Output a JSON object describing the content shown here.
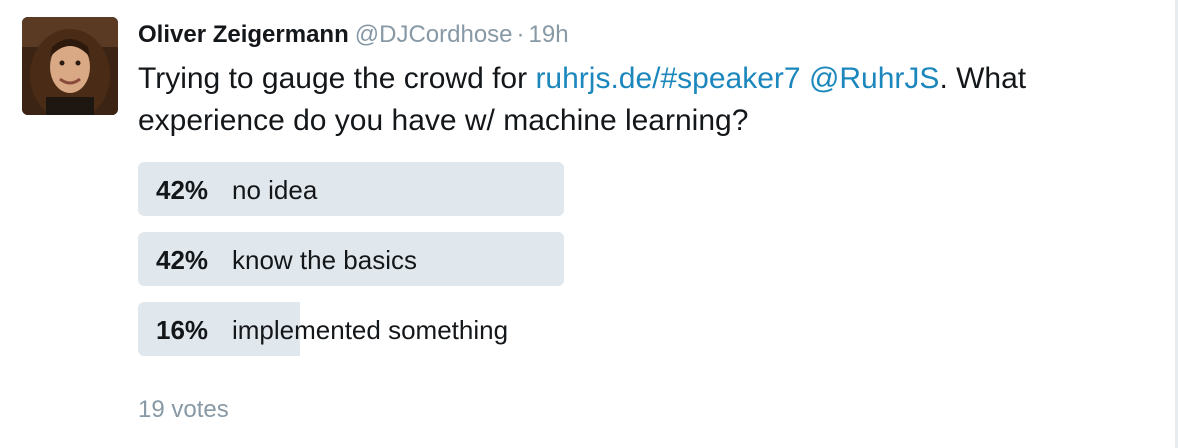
{
  "tweet": {
    "author_name": "Oliver Zeigermann",
    "handle": "@DJCordhose",
    "separator": "·",
    "timestamp": "19h",
    "text_parts": {
      "before": "Trying to gauge the crowd for ",
      "link": "ruhrjs.de/#speaker7",
      "mention": "@RuhrJS",
      "after": ". What experience do you have w/ machine learning?"
    }
  },
  "poll": {
    "choices": [
      {
        "percent_label": "42%",
        "label": "no idea",
        "fraction": 1.0
      },
      {
        "percent_label": "42%",
        "label": "know the basics",
        "fraction": 1.0
      },
      {
        "percent_label": "16%",
        "label": "implemented something",
        "fraction": 0.38
      }
    ],
    "votes": "19 votes"
  },
  "colors": {
    "link": "#1c87bd",
    "muted": "#8899a6",
    "bar": "#e1e8ed"
  }
}
